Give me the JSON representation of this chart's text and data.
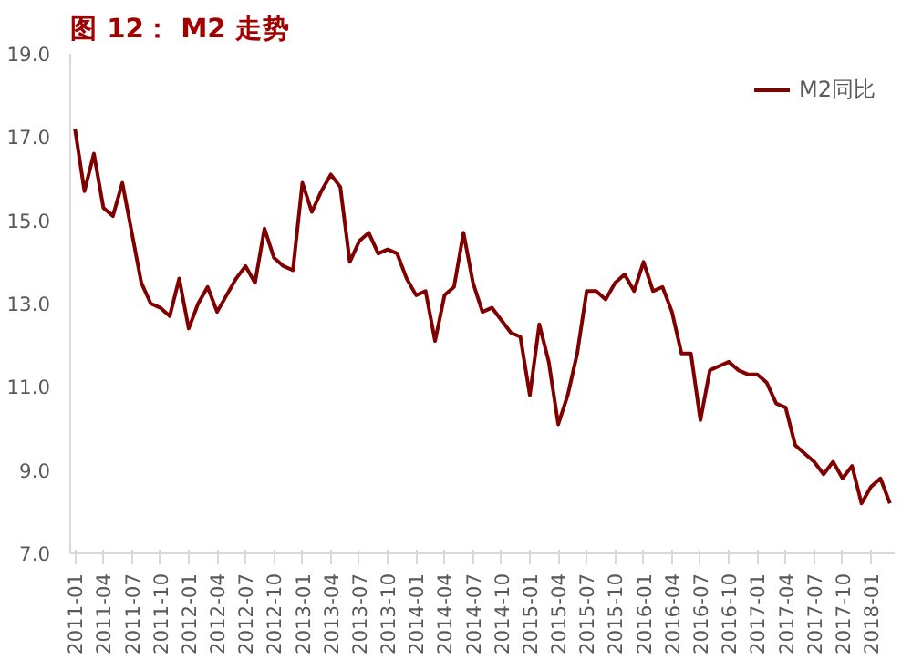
{
  "chart_data": {
    "type": "line",
    "title": "图 12： M2 走势",
    "categories": [
      "2011-01",
      null,
      null,
      "2011-04",
      null,
      null,
      "2011-07",
      null,
      null,
      "2011-10",
      null,
      null,
      "2012-01",
      null,
      null,
      "2012-04",
      null,
      null,
      "2012-07",
      null,
      null,
      "2012-10",
      null,
      null,
      "2013-01",
      null,
      null,
      "2013-04",
      null,
      null,
      "2013-07",
      null,
      null,
      "2013-10",
      null,
      null,
      "2014-01",
      null,
      null,
      "2014-04",
      null,
      null,
      "2014-07",
      null,
      null,
      "2014-10",
      null,
      null,
      "2015-01",
      null,
      null,
      "2015-04",
      null,
      null,
      "2015-07",
      null,
      null,
      "2015-10",
      null,
      null,
      "2016-01",
      null,
      null,
      "2016-04",
      null,
      null,
      "2016-07",
      null,
      null,
      "2016-10",
      null,
      null,
      "2017-01",
      null,
      null,
      "2017-04",
      null,
      null,
      "2017-07",
      null,
      null,
      "2017-10",
      null,
      null,
      "2018-01",
      null,
      null
    ],
    "series": [
      {
        "name": "M2同比",
        "color": "#800000",
        "values": [
          17.2,
          15.7,
          16.6,
          15.3,
          15.1,
          15.9,
          14.7,
          13.5,
          13.0,
          12.9,
          12.7,
          13.6,
          12.4,
          13.0,
          13.4,
          12.8,
          13.2,
          13.6,
          13.9,
          13.5,
          14.8,
          14.1,
          13.9,
          13.8,
          15.9,
          15.2,
          15.7,
          16.1,
          15.8,
          14.0,
          14.5,
          14.7,
          14.2,
          14.3,
          14.2,
          13.6,
          13.2,
          13.3,
          12.1,
          13.2,
          13.4,
          14.7,
          13.5,
          12.8,
          12.9,
          12.6,
          12.3,
          12.2,
          10.8,
          12.5,
          11.6,
          10.1,
          10.8,
          11.8,
          13.3,
          13.3,
          13.1,
          13.5,
          13.7,
          13.3,
          14.0,
          13.3,
          13.4,
          12.8,
          11.8,
          11.8,
          10.2,
          11.4,
          11.5,
          11.6,
          11.4,
          11.3,
          11.3,
          11.1,
          10.6,
          10.5,
          9.6,
          9.4,
          9.2,
          8.9,
          9.2,
          8.8,
          9.1,
          8.2,
          8.6,
          8.8,
          8.2
        ]
      }
    ],
    "ylim": [
      7.0,
      19.0
    ],
    "yticks": [
      {
        "value": 7,
        "label": "7.0"
      },
      {
        "value": 9,
        "label": "9.0"
      },
      {
        "value": 11,
        "label": "11.0"
      },
      {
        "value": 13,
        "label": "13.0"
      },
      {
        "value": 15,
        "label": "15.0"
      },
      {
        "value": 17,
        "label": "17.0"
      },
      {
        "value": 19,
        "label": "19.0"
      }
    ],
    "grid": false,
    "legend": "top right",
    "line_style": "solid"
  }
}
